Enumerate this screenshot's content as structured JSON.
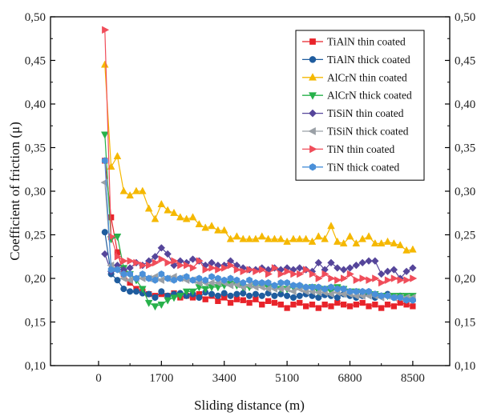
{
  "chart_data": {
    "type": "line",
    "xlabel": "Sliding distance (m)",
    "ylabel": "Coefficient of friction (μ)",
    "xlim": [
      -1300,
      9500
    ],
    "ylim": [
      0.1,
      0.5
    ],
    "x_ticks": [
      0,
      1700,
      3400,
      5100,
      6800,
      8500
    ],
    "x_tick_labels": [
      "0",
      "1700",
      "3400",
      "5100",
      "6800",
      "8500"
    ],
    "y_ticks": [
      0.1,
      0.15,
      0.2,
      0.25,
      0.3,
      0.35,
      0.4,
      0.45,
      0.5
    ],
    "y_tick_labels": [
      "0,10",
      "0,15",
      "0,20",
      "0,25",
      "0,30",
      "0,35",
      "0,40",
      "0,45",
      "0,50"
    ],
    "grid": false,
    "legend_position": "top-right",
    "x": [
      170,
      340,
      510,
      680,
      850,
      1020,
      1190,
      1360,
      1530,
      1700,
      1870,
      2040,
      2210,
      2380,
      2550,
      2720,
      2890,
      3060,
      3230,
      3400,
      3570,
      3740,
      3910,
      4080,
      4250,
      4420,
      4590,
      4760,
      4930,
      5100,
      5270,
      5440,
      5610,
      5780,
      5950,
      6120,
      6290,
      6460,
      6630,
      6800,
      6970,
      7140,
      7310,
      7480,
      7650,
      7820,
      7990,
      8160,
      8330,
      8500
    ],
    "series": [
      {
        "name": "TiAlN thin coated",
        "color": "#e8232a",
        "marker": "square",
        "values": [
          0.335,
          0.27,
          0.23,
          0.205,
          0.195,
          0.188,
          0.185,
          0.182,
          0.18,
          0.182,
          0.18,
          0.183,
          0.178,
          0.18,
          0.178,
          0.182,
          0.176,
          0.18,
          0.174,
          0.178,
          0.172,
          0.176,
          0.175,
          0.172,
          0.176,
          0.17,
          0.174,
          0.172,
          0.17,
          0.166,
          0.17,
          0.172,
          0.168,
          0.17,
          0.166,
          0.17,
          0.168,
          0.172,
          0.17,
          0.168,
          0.17,
          0.172,
          0.168,
          0.17,
          0.166,
          0.17,
          0.168,
          0.172,
          0.17,
          0.168
        ]
      },
      {
        "name": "TiAlN thick coated",
        "color": "#1f5c9e",
        "marker": "circle",
        "values": [
          0.253,
          0.205,
          0.198,
          0.188,
          0.185,
          0.185,
          0.183,
          0.182,
          0.178,
          0.185,
          0.18,
          0.182,
          0.183,
          0.18,
          0.182,
          0.178,
          0.184,
          0.182,
          0.18,
          0.183,
          0.18,
          0.182,
          0.183,
          0.18,
          0.182,
          0.18,
          0.183,
          0.18,
          0.182,
          0.18,
          0.178,
          0.18,
          0.182,
          0.18,
          0.178,
          0.181,
          0.18,
          0.178,
          0.182,
          0.18,
          0.178,
          0.18,
          0.182,
          0.178,
          0.18,
          0.182,
          0.178,
          0.18,
          0.176,
          0.175
        ]
      },
      {
        "name": "AlCrN thin coated",
        "color": "#f5b800",
        "marker": "triangle-up",
        "values": [
          0.445,
          0.328,
          0.34,
          0.3,
          0.295,
          0.3,
          0.3,
          0.28,
          0.268,
          0.285,
          0.278,
          0.275,
          0.27,
          0.268,
          0.27,
          0.262,
          0.258,
          0.26,
          0.255,
          0.255,
          0.245,
          0.248,
          0.245,
          0.245,
          0.245,
          0.248,
          0.245,
          0.245,
          0.245,
          0.242,
          0.245,
          0.245,
          0.245,
          0.242,
          0.248,
          0.245,
          0.26,
          0.242,
          0.24,
          0.248,
          0.24,
          0.245,
          0.248,
          0.24,
          0.24,
          0.242,
          0.24,
          0.238,
          0.232,
          0.233
        ]
      },
      {
        "name": "AlCrN thick coated",
        "color": "#27b14a",
        "marker": "triangle-down",
        "values": [
          0.365,
          0.245,
          0.248,
          0.212,
          0.205,
          0.198,
          0.188,
          0.172,
          0.168,
          0.17,
          0.175,
          0.178,
          0.18,
          0.185,
          0.185,
          0.19,
          0.188,
          0.19,
          0.19,
          0.192,
          0.194,
          0.192,
          0.19,
          0.19,
          0.192,
          0.192,
          0.19,
          0.19,
          0.188,
          0.188,
          0.19,
          0.19,
          0.188,
          0.19,
          0.185,
          0.188,
          0.185,
          0.19,
          0.188,
          0.185,
          0.185,
          0.183,
          0.182,
          0.182,
          0.18,
          0.18,
          0.18,
          0.18,
          0.18,
          0.18
        ]
      },
      {
        "name": "TiSiN thin coated",
        "color": "#55459a",
        "marker": "diamond",
        "values": [
          0.228,
          0.208,
          0.215,
          0.21,
          0.212,
          0.218,
          0.215,
          0.22,
          0.225,
          0.235,
          0.228,
          0.215,
          0.22,
          0.218,
          0.222,
          0.22,
          0.215,
          0.218,
          0.215,
          0.215,
          0.22,
          0.215,
          0.212,
          0.21,
          0.21,
          0.212,
          0.21,
          0.212,
          0.21,
          0.212,
          0.21,
          0.212,
          0.21,
          0.208,
          0.218,
          0.21,
          0.218,
          0.212,
          0.21,
          0.212,
          0.215,
          0.218,
          0.22,
          0.22,
          0.205,
          0.208,
          0.21,
          0.2,
          0.208,
          0.212
        ]
      },
      {
        "name": "TiSiN thick coated",
        "color": "#9aa0a6",
        "marker": "triangle-left",
        "values": [
          0.31,
          0.215,
          0.21,
          0.2,
          0.198,
          0.2,
          0.2,
          0.2,
          0.202,
          0.198,
          0.2,
          0.202,
          0.2,
          0.198,
          0.198,
          0.195,
          0.195,
          0.195,
          0.195,
          0.195,
          0.192,
          0.193,
          0.19,
          0.192,
          0.19,
          0.19,
          0.188,
          0.188,
          0.188,
          0.188,
          0.185,
          0.188,
          0.185,
          0.185,
          0.184,
          0.184,
          0.182,
          0.184,
          0.182,
          0.182,
          0.18,
          0.18,
          0.18,
          0.18,
          0.178,
          0.18,
          0.178,
          0.178,
          0.178,
          0.178
        ]
      },
      {
        "name": "TiN thin coated",
        "color": "#f04d5a",
        "marker": "triangle-right",
        "values": [
          0.485,
          0.248,
          0.225,
          0.22,
          0.22,
          0.218,
          0.215,
          0.215,
          0.218,
          0.222,
          0.218,
          0.22,
          0.215,
          0.215,
          0.212,
          0.22,
          0.21,
          0.212,
          0.21,
          0.212,
          0.215,
          0.21,
          0.208,
          0.21,
          0.208,
          0.21,
          0.205,
          0.212,
          0.205,
          0.208,
          0.205,
          0.205,
          0.21,
          0.205,
          0.2,
          0.205,
          0.2,
          0.198,
          0.2,
          0.205,
          0.198,
          0.2,
          0.198,
          0.2,
          0.195,
          0.198,
          0.2,
          0.198,
          0.198,
          0.2
        ]
      },
      {
        "name": "TiN thick coated",
        "color": "#4a90d9",
        "marker": "hexagon",
        "values": [
          0.335,
          0.21,
          0.21,
          0.205,
          0.205,
          0.2,
          0.205,
          0.2,
          0.198,
          0.205,
          0.2,
          0.198,
          0.2,
          0.202,
          0.198,
          0.2,
          0.198,
          0.202,
          0.2,
          0.198,
          0.2,
          0.198,
          0.195,
          0.198,
          0.195,
          0.195,
          0.195,
          0.192,
          0.195,
          0.195,
          0.192,
          0.192,
          0.19,
          0.19,
          0.19,
          0.188,
          0.19,
          0.188,
          0.188,
          0.185,
          0.185,
          0.185,
          0.185,
          0.182,
          0.18,
          0.18,
          0.178,
          0.178,
          0.175,
          0.175
        ]
      }
    ]
  }
}
